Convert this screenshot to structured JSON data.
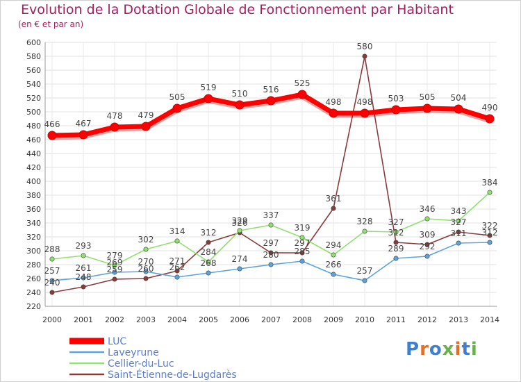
{
  "title": "Evolution de la Dotation Globale de Fonctionnement par Habitant",
  "subtitle": "(en € et par an)",
  "logo": "Proxiti",
  "chart_data": {
    "type": "line",
    "x": [
      2000,
      2001,
      2002,
      2003,
      2004,
      2005,
      2006,
      2007,
      2008,
      2009,
      2010,
      2011,
      2012,
      2013,
      2014
    ],
    "ylim": [
      220,
      600
    ],
    "yticks": [
      220,
      240,
      260,
      280,
      300,
      320,
      340,
      360,
      380,
      400,
      420,
      440,
      460,
      480,
      500,
      520,
      540,
      560,
      580,
      600
    ],
    "grid": true,
    "legend_position": "bottom-left",
    "series": [
      {
        "name": "LUC",
        "color": "#ff0000",
        "values": [
          466,
          467,
          478,
          479,
          505,
          519,
          510,
          516,
          525,
          498,
          498,
          503,
          505,
          504,
          490
        ]
      },
      {
        "name": "Laveyrune",
        "color": "#5ba3d9",
        "values": [
          257,
          261,
          269,
          270,
          262,
          268,
          274,
          280,
          285,
          266,
          257,
          289,
          292,
          311,
          312
        ]
      },
      {
        "name": "Cellier-du-Luc",
        "color": "#90e070",
        "values": [
          288,
          293,
          279,
          302,
          314,
          284,
          329,
          337,
          319,
          294,
          328,
          327,
          346,
          343,
          384
        ]
      },
      {
        "name": "Saint-Étienne-de-Lugdarès",
        "color": "#8b3a3a",
        "values": [
          240,
          248,
          259,
          260,
          271,
          312,
          326,
          297,
          297,
          361,
          580,
          312,
          309,
          327,
          322
        ]
      }
    ]
  }
}
